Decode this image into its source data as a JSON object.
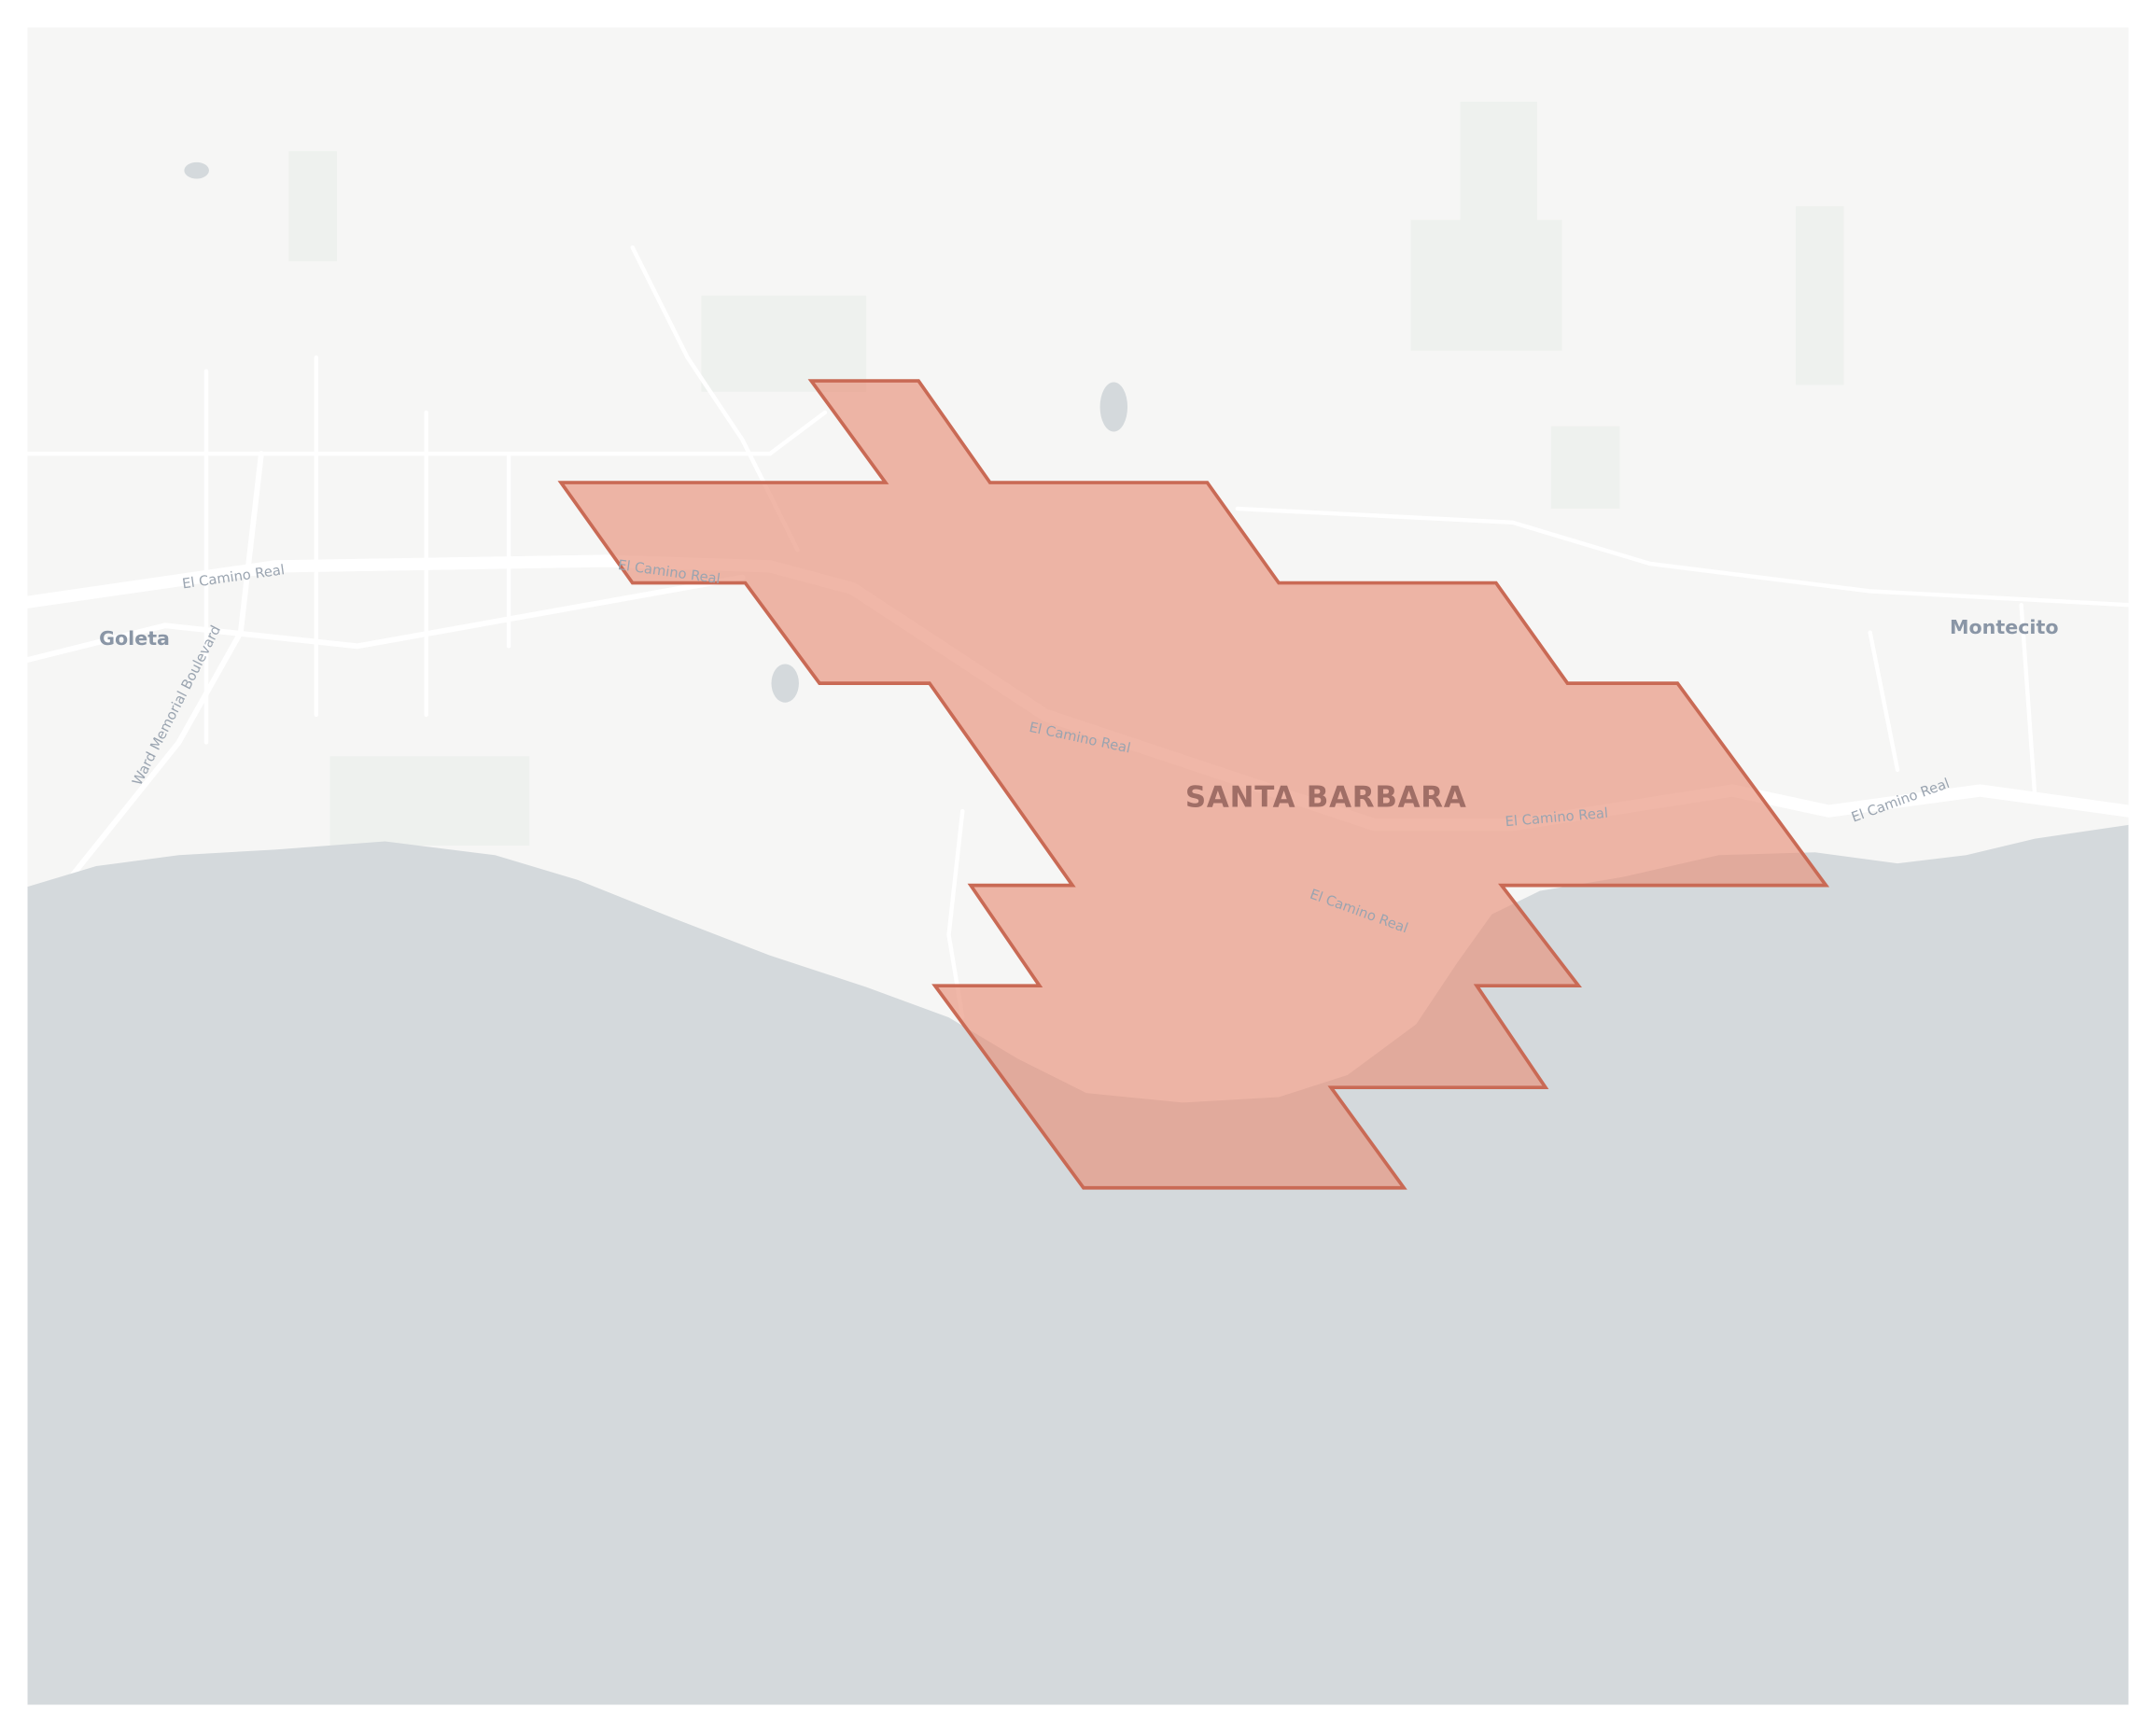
{
  "map": {
    "type": "choropleth-region",
    "colors": {
      "land": "#f6f6f5",
      "ocean": "#d4d9dc",
      "road": "#ffffff",
      "park": "#eef1ee",
      "region_fill": "#e8a08a",
      "region_stroke": "#c96a55"
    },
    "places": {
      "goleta": "Goleta",
      "montecito": "Montecito",
      "santa_barbara": "SANTA BARBARA"
    },
    "roads": {
      "el_camino_real": "El Camino Real",
      "ward_memorial": "Ward Memorial Boulevard"
    }
  }
}
